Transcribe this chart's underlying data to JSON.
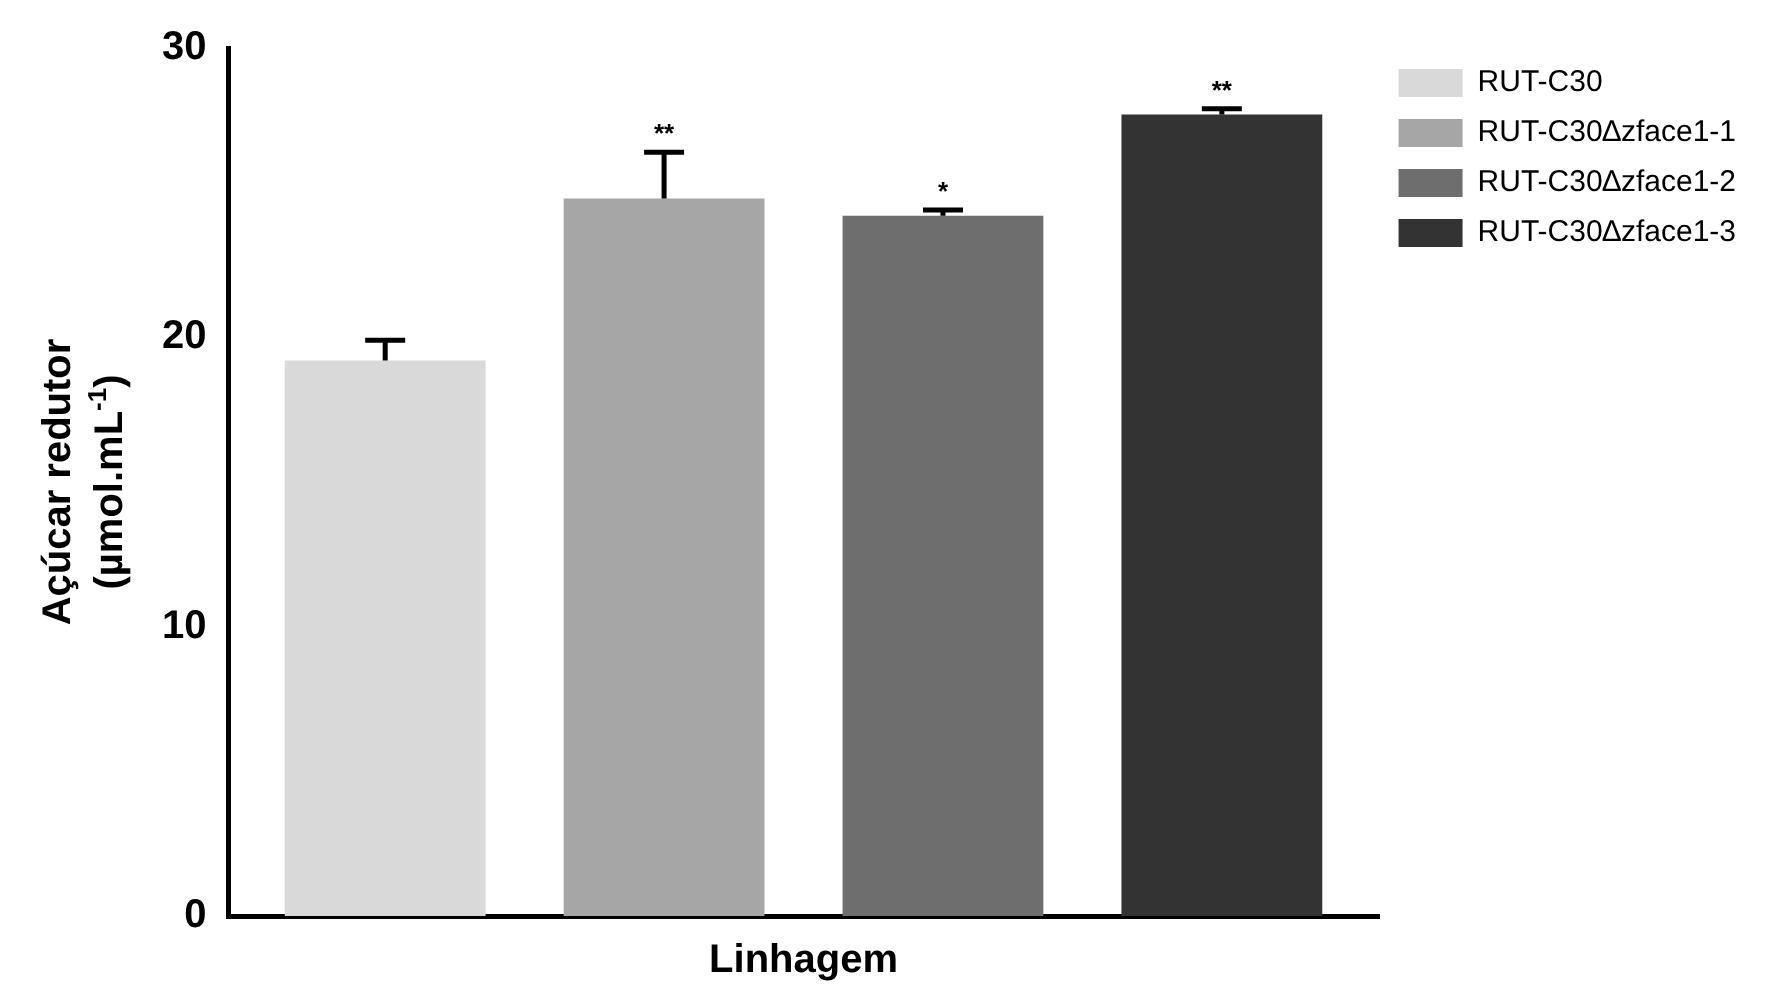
{
  "chart_data": {
    "type": "bar",
    "xlabel": "Linhagem",
    "ylabel": "Açúcar redutor\n(µmol.mL$^{-1}$)",
    "categories": [
      null
    ],
    "series": [
      {
        "name": "RUT-C30",
        "color": "#d9d9d9",
        "values": [
          19.2
        ],
        "errors": [
          [
            19.2,
            19.9
          ]
        ]
      },
      {
        "name": "RUT-C30∆zface1-1",
        "color": "#a6a6a6",
        "values": [
          24.8
        ],
        "errors": [
          [
            24.8,
            26.4
          ]
        ]
      },
      {
        "name": "RUT-C30∆zface1-2",
        "color": "#6e6e6e",
        "values": [
          24.2
        ],
        "errors": [
          [
            24.2,
            24.4
          ]
        ]
      },
      {
        "name": "RUT-C30∆zface1-3",
        "color": "#333333",
        "values": [
          27.7
        ],
        "errors": [
          [
            27.7,
            27.9
          ]
        ]
      }
    ],
    "annotations": [
      {
        "text": "**",
        "y": 26.4
      },
      {
        "text": "*",
        "y": 24.4
      },
      {
        "text": "**",
        "y": 27.9
      }
    ],
    "ylim": [
      0,
      30
    ],
    "yticks": [
      0,
      10,
      20,
      30
    ],
    "grid": false,
    "legend": "top right"
  }
}
